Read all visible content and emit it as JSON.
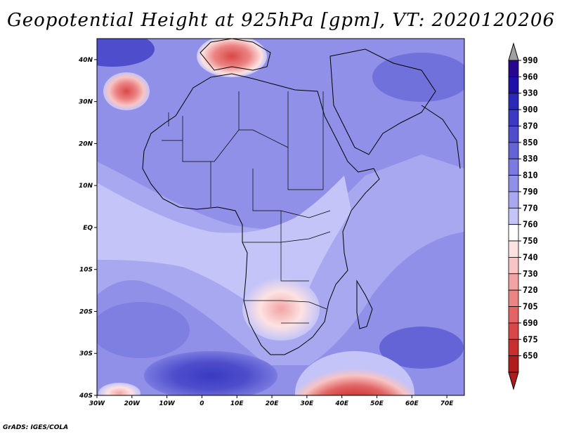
{
  "title": "Geopotential Height at 925hPa [gpm], VT: 2020120206",
  "credit": "GrADS: IGES/COLA",
  "map": {
    "lon_range": [
      -30,
      75
    ],
    "lat_range": [
      -40,
      45
    ],
    "lat_ticks": [
      {
        "value": 40,
        "label": "40N"
      },
      {
        "value": 30,
        "label": "30N"
      },
      {
        "value": 20,
        "label": "20N"
      },
      {
        "value": 10,
        "label": "10N"
      },
      {
        "value": 0,
        "label": "EQ"
      },
      {
        "value": -10,
        "label": "10S"
      },
      {
        "value": -20,
        "label": "20S"
      },
      {
        "value": -30,
        "label": "30S"
      },
      {
        "value": -40,
        "label": "40S"
      }
    ],
    "lon_ticks": [
      {
        "value": -30,
        "label": "30W"
      },
      {
        "value": -20,
        "label": "20W"
      },
      {
        "value": -10,
        "label": "10W"
      },
      {
        "value": 0,
        "label": "0"
      },
      {
        "value": 10,
        "label": "10E"
      },
      {
        "value": 20,
        "label": "20E"
      },
      {
        "value": 30,
        "label": "30E"
      },
      {
        "value": 40,
        "label": "40E"
      },
      {
        "value": 50,
        "label": "50E"
      },
      {
        "value": 60,
        "label": "60E"
      },
      {
        "value": 70,
        "label": "70E"
      }
    ]
  },
  "colorbar": {
    "levels": [
      {
        "label": "990",
        "color": "#27058f"
      },
      {
        "label": "960",
        "color": "#1d0fa8"
      },
      {
        "label": "930",
        "color": "#2a2ab6"
      },
      {
        "label": "900",
        "color": "#3a3ac2"
      },
      {
        "label": "870",
        "color": "#4e4ecc"
      },
      {
        "label": "850",
        "color": "#6464d6"
      },
      {
        "label": "830",
        "color": "#7a7ae0"
      },
      {
        "label": "810",
        "color": "#9090e8"
      },
      {
        "label": "790",
        "color": "#a8a8f0"
      },
      {
        "label": "770",
        "color": "#c4c4f8"
      },
      {
        "label": "760",
        "color": "#ffffff"
      },
      {
        "label": "750",
        "color": "#fde2e2"
      },
      {
        "label": "740",
        "color": "#f8c4c4"
      },
      {
        "label": "730",
        "color": "#f2a4a4"
      },
      {
        "label": "720",
        "color": "#ec8484"
      },
      {
        "label": "705",
        "color": "#e26464"
      },
      {
        "label": "690",
        "color": "#d84848"
      },
      {
        "label": "675",
        "color": "#c83030"
      },
      {
        "label": "650",
        "color": "#b01c1c"
      }
    ],
    "top_color": "#a0a0a0",
    "bottom_color": "#b01c1c"
  }
}
